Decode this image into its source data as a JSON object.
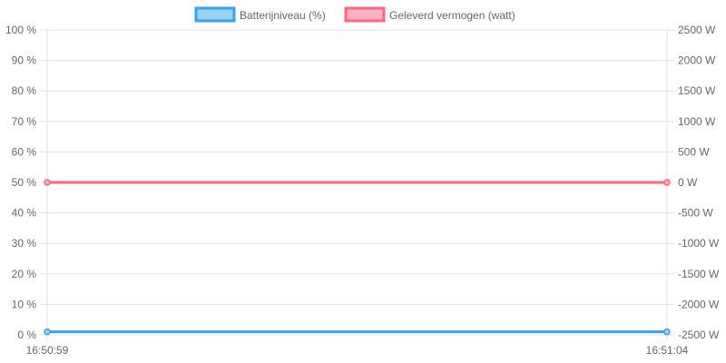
{
  "chart_data": {
    "type": "line",
    "x": [
      "16:50:59",
      "16:51:04"
    ],
    "x_tick_labels": [
      "16:50:59",
      "16:51:04"
    ],
    "legend_position": "top",
    "grid": true,
    "y_left": {
      "ylim": [
        0,
        100
      ],
      "ticks": [
        0,
        10,
        20,
        30,
        40,
        50,
        60,
        70,
        80,
        90,
        100
      ],
      "tick_labels": [
        "0 %",
        "10 %",
        "20 %",
        "30 %",
        "40 %",
        "50 %",
        "60 %",
        "70 %",
        "80 %",
        "90 %",
        "100 %"
      ]
    },
    "y_right": {
      "ylim": [
        -2500,
        2500
      ],
      "ticks": [
        -2500,
        -2000,
        -1500,
        -1000,
        -500,
        0,
        500,
        1000,
        1500,
        2000,
        2500
      ],
      "tick_labels": [
        "-2500 W",
        "-2000 W",
        "-1500 W",
        "-1000 W",
        "-500 W",
        "0 W",
        "500 W",
        "1000 W",
        "1500 W",
        "2000 W",
        "2500 W"
      ]
    },
    "series": [
      {
        "name": "Batterijniveau (%)",
        "axis": "left",
        "color": "#36a2eb",
        "fill": "#9ad0f5",
        "values": [
          1,
          1
        ]
      },
      {
        "name": "Geleverd vermogen (watt)",
        "axis": "right",
        "color": "#ff6384",
        "fill": "#ffb1c1",
        "values": [
          0,
          0
        ]
      }
    ]
  }
}
